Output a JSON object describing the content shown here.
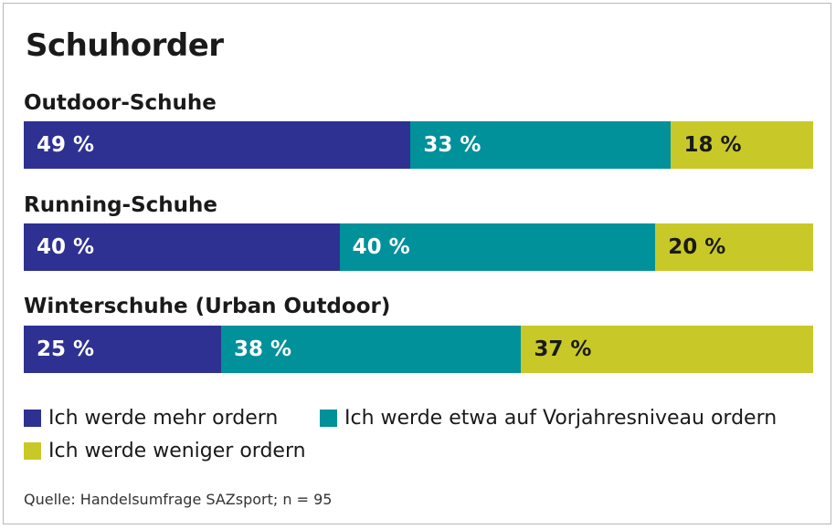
{
  "chart_data": {
    "type": "bar",
    "orientation": "horizontal",
    "stacked": true,
    "percent_stacked": true,
    "title": "Schuhorder",
    "categories": [
      "Outdoor-Schuhe",
      "Running-Schuhe",
      "Winterschuhe (Urban Outdoor)"
    ],
    "series": [
      {
        "name": "Ich werde mehr ordern",
        "color": "#2e3192",
        "label_color": "#ffffff",
        "values": [
          49,
          40,
          25
        ]
      },
      {
        "name": "Ich werde etwa auf Vorjahresniveau ordern",
        "color": "#00919a",
        "label_color": "#ffffff",
        "values": [
          33,
          40,
          38
        ]
      },
      {
        "name": "Ich werde weniger ordern",
        "color": "#c8c928",
        "label_color": "#1a1a1a",
        "values": [
          18,
          20,
          37
        ]
      }
    ],
    "value_suffix": " %",
    "xlim": [
      0,
      100
    ],
    "grid": false,
    "legend_position": "bottom"
  },
  "source": "Quelle: Handelsumfrage SAZsport; n = 95"
}
